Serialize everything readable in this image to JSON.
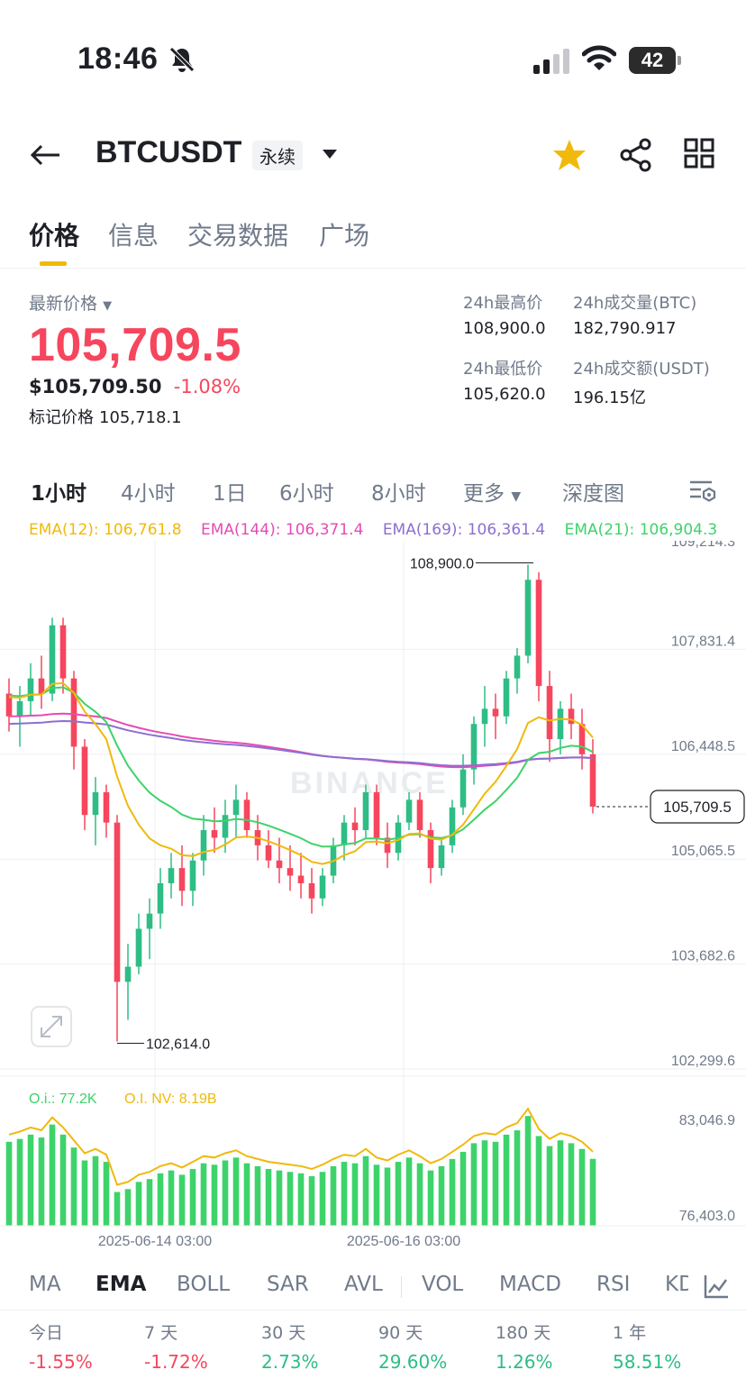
{
  "status": {
    "time": "18:46",
    "battery": "42"
  },
  "header": {
    "symbol": "BTCUSDT",
    "contract_type": "永续"
  },
  "tabs": [
    "价格",
    "信息",
    "交易数据",
    "广场"
  ],
  "price": {
    "label": "最新价格",
    "last": "105,709.5",
    "usd": "$105,709.50",
    "change": "-1.08%",
    "mark_label": "标记价格",
    "mark": "105,718.1"
  },
  "stats": {
    "high_label": "24h最高价",
    "high": "108,900.0",
    "low_label": "24h最低价",
    "low": "105,620.0",
    "vol_btc_label": "24h成交量(BTC)",
    "vol_btc": "182,790.917",
    "vol_usdt_label": "24h成交额(USDT)",
    "vol_usdt": "196.15亿"
  },
  "intervals": [
    "1小时",
    "4小时",
    "1日",
    "6小时",
    "8小时",
    "更多",
    "深度图"
  ],
  "ema": {
    "ema12": "EMA(12): 106,761.8",
    "ema144": "EMA(144): 106,371.4",
    "ema169": "EMA(169): 106,361.4",
    "ema21": "EMA(21): 106,904.3"
  },
  "colors": {
    "up": "#2ebd85",
    "down": "#f6465d",
    "accent": "#f0b90b",
    "ema12": "#f0b90b",
    "ema21": "#3dd36a",
    "ema144": "#e64bb4",
    "ema169": "#8c6fd1",
    "oi_bar": "#3dd36a"
  },
  "chart_labels": {
    "watermark": "BINANCE",
    "high_marker": "108,900.0",
    "low_marker": "102,614.0",
    "current_price": "105,709.5",
    "oi": "O.i.: 77.2K",
    "oi_nv": "O.I. NV: 8.19B",
    "x_ticks": [
      "2025-06-14 03:00",
      "2025-06-16 03:00"
    ],
    "oi_ticks": [
      "83,046.9",
      "76,403.0"
    ]
  },
  "chart_data": {
    "type": "candlestick",
    "ylim": [
      102299.6,
      109214.3
    ],
    "y_ticks": [
      "109,214.3",
      "107,831.4",
      "106,448.5",
      "105,065.5",
      "103,682.6",
      "102,299.6"
    ],
    "last_price": 105709.5,
    "high": 108900.0,
    "low": 102614.0,
    "x_ticks": [
      "2025-06-14 03:00",
      "2025-06-16 03:00"
    ],
    "candles": [
      [
        107200,
        107400,
        106700,
        106900
      ],
      [
        106900,
        107300,
        106500,
        107100
      ],
      [
        107100,
        107600,
        106900,
        107400
      ],
      [
        107400,
        107700,
        107000,
        107200
      ],
      [
        107200,
        108200,
        107100,
        108100
      ],
      [
        108100,
        108200,
        107200,
        107400
      ],
      [
        107400,
        107500,
        106200,
        106500
      ],
      [
        106500,
        106600,
        105400,
        105600
      ],
      [
        105600,
        106100,
        105200,
        105900
      ],
      [
        105900,
        106000,
        105300,
        105500
      ],
      [
        105500,
        105600,
        102614,
        103400
      ],
      [
        103400,
        103900,
        102900,
        103600
      ],
      [
        103600,
        104300,
        103500,
        104100
      ],
      [
        104100,
        104500,
        103700,
        104300
      ],
      [
        104300,
        104900,
        104100,
        104700
      ],
      [
        104700,
        105100,
        104500,
        104900
      ],
      [
        104900,
        105200,
        104400,
        104600
      ],
      [
        104600,
        105100,
        104400,
        105000
      ],
      [
        105000,
        105600,
        104800,
        105400
      ],
      [
        105400,
        105700,
        105100,
        105300
      ],
      [
        105300,
        105800,
        105100,
        105600
      ],
      [
        105600,
        106000,
        105300,
        105800
      ],
      [
        105800,
        105900,
        105300,
        105400
      ],
      [
        105400,
        105600,
        105000,
        105200
      ],
      [
        105200,
        105400,
        104900,
        105000
      ],
      [
        105000,
        105300,
        104700,
        104900
      ],
      [
        104900,
        105200,
        104600,
        104800
      ],
      [
        104800,
        105100,
        104500,
        104700
      ],
      [
        104700,
        104900,
        104300,
        104500
      ],
      [
        104500,
        104900,
        104400,
        104800
      ],
      [
        104800,
        105300,
        104700,
        105200
      ],
      [
        105200,
        105600,
        105000,
        105500
      ],
      [
        105500,
        105700,
        105200,
        105400
      ],
      [
        105400,
        106000,
        105300,
        105900
      ],
      [
        105900,
        106000,
        105200,
        105300
      ],
      [
        105300,
        105500,
        104900,
        105100
      ],
      [
        105100,
        105600,
        105000,
        105500
      ],
      [
        105500,
        105900,
        105400,
        105800
      ],
      [
        105800,
        105900,
        105300,
        105400
      ],
      [
        105400,
        105500,
        104700,
        104900
      ],
      [
        104900,
        105300,
        104800,
        105200
      ],
      [
        105200,
        105800,
        105100,
        105700
      ],
      [
        105700,
        106400,
        105600,
        106200
      ],
      [
        106200,
        106900,
        106000,
        106800
      ],
      [
        106800,
        107300,
        106500,
        107000
      ],
      [
        107000,
        107200,
        106600,
        106900
      ],
      [
        106900,
        107500,
        106800,
        107400
      ],
      [
        107400,
        107800,
        107200,
        107700
      ],
      [
        107700,
        108900,
        107600,
        108700
      ],
      [
        108700,
        108800,
        107100,
        107300
      ],
      [
        107300,
        107500,
        106300,
        106600
      ],
      [
        106600,
        107100,
        106400,
        107000
      ],
      [
        107000,
        107200,
        106600,
        106800
      ],
      [
        106800,
        107000,
        106200,
        106400
      ],
      [
        106400,
        106600,
        105620,
        105709.5
      ]
    ]
  },
  "oi_chart": {
    "ylim": [
      76403.0,
      83046.9
    ]
  },
  "indicators": [
    "MA",
    "EMA",
    "BOLL",
    "SAR",
    "AVL",
    "VOL",
    "MACD",
    "RSI",
    "KD"
  ],
  "performance": [
    {
      "label": "今日",
      "value": "-1.55%"
    },
    {
      "label": "7 天",
      "value": "-1.72%"
    },
    {
      "label": "30 天",
      "value": "2.73%"
    },
    {
      "label": "90 天",
      "value": "29.60%"
    },
    {
      "label": "180 天",
      "value": "1.26%"
    },
    {
      "label": "1 年",
      "value": "58.51%"
    }
  ]
}
